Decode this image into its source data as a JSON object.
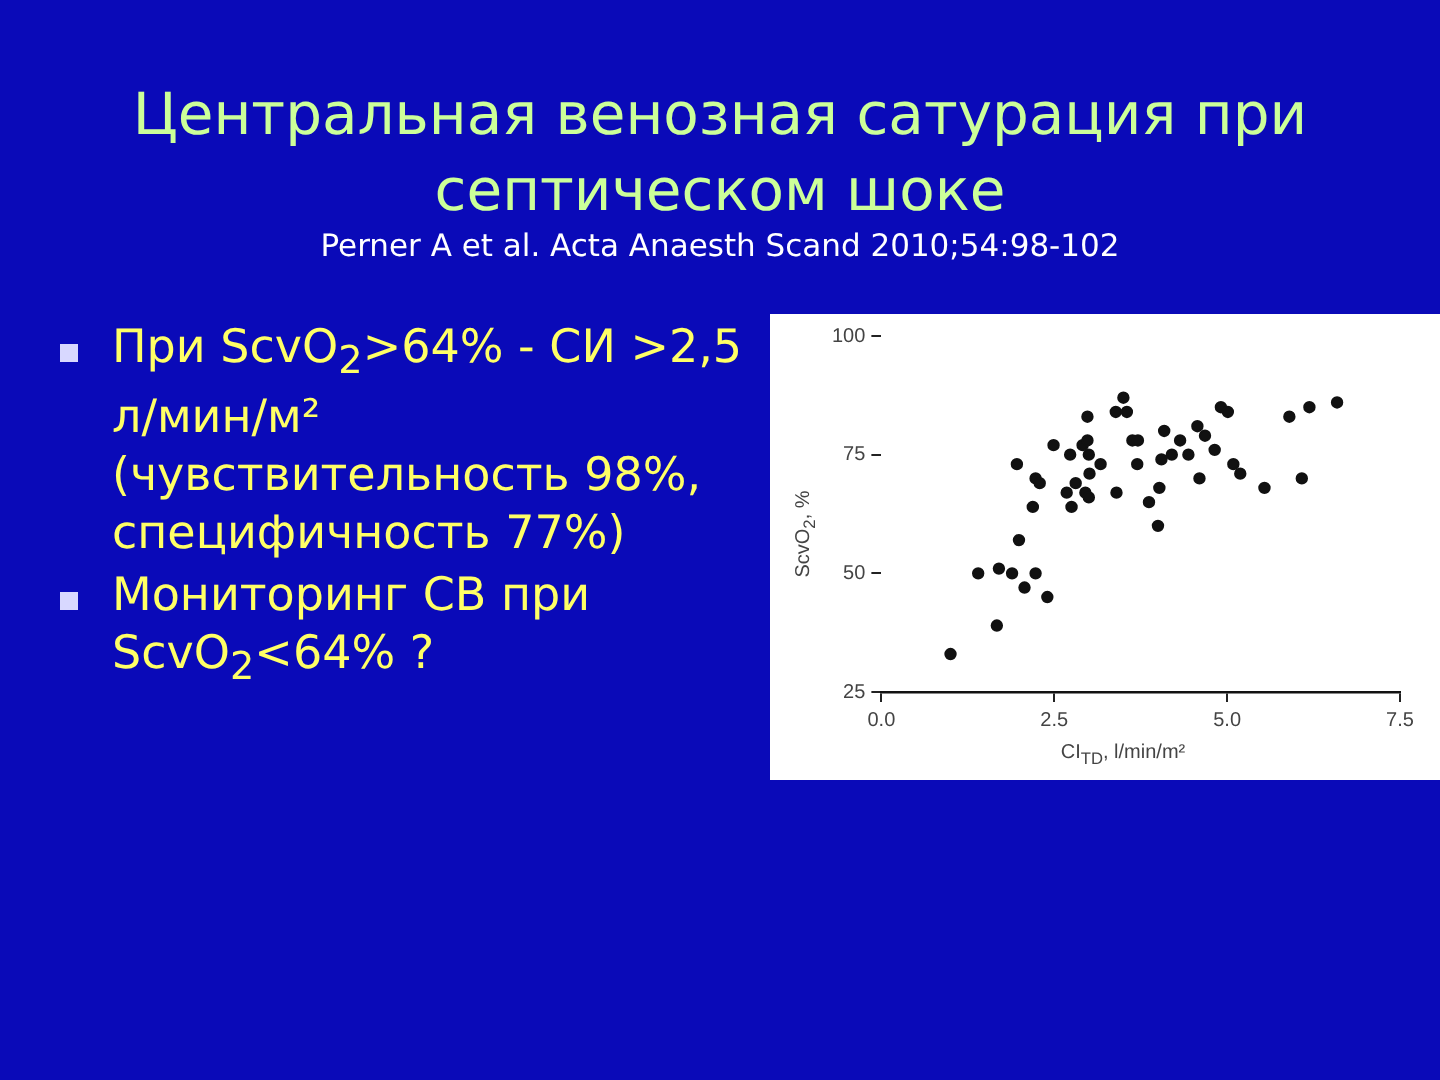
{
  "chart_data": {
    "type": "scatter",
    "title": "Центральная венозная сатурация при септическом шоке",
    "subtitle": "Perner A et al. Acta Anaesth Scand 2010;54:98-102",
    "xlabel": "CI$_{TD}$, l/min/m²",
    "ylabel": "ScvO$_{2}$, %",
    "annotations": [
      "При ScvO$_{2}$>64% - СИ >2,5 л/мин/м² (чувствительность 98%, специфичность 77%)",
      "Мониторинг СВ при ScvO$_{2}$<64% ?"
    ],
    "xlim": [
      0,
      7.5
    ],
    "ylim": [
      25,
      100
    ],
    "xticks": [
      {
        "value": 0,
        "label": "0.0"
      },
      2.5,
      {
        "value": 5,
        "label": "5.0"
      },
      7.5
    ],
    "yticks": [
      25,
      50,
      75,
      100
    ],
    "grid": false,
    "legend": false,
    "marker": "circle",
    "series": [
      {
        "color": "#111111",
        "x": [
          1.0,
          1.4,
          1.7,
          1.67,
          1.89,
          1.96,
          1.99,
          2.07,
          2.19,
          2.23,
          2.23,
          2.29,
          2.4,
          2.49,
          2.68,
          2.73,
          2.75,
          2.81,
          2.91,
          2.95,
          2.98,
          2.98,
          3.0,
          3.01,
          3.0,
          3.17,
          3.4,
          3.39,
          3.5,
          3.55,
          3.63,
          3.71,
          3.7,
          3.87,
          4.0,
          4.02,
          4.05,
          4.09,
          4.2,
          4.32,
          4.44,
          4.57,
          4.6,
          4.68,
          4.82,
          4.91,
          5.01,
          5.09,
          5.19,
          5.54,
          5.9,
          6.08,
          6.19,
          6.59
        ],
        "values": [
          33,
          50,
          51,
          39,
          50,
          73,
          57,
          47,
          64,
          50,
          70,
          69,
          45,
          77,
          67,
          75,
          64,
          69,
          77,
          67,
          83,
          78,
          75,
          71,
          66,
          73,
          67,
          84,
          87,
          84,
          78,
          78,
          73,
          65,
          60,
          68,
          74,
          80,
          75,
          78,
          75,
          81,
          70,
          79,
          76,
          85,
          84,
          73,
          71,
          68,
          83,
          70,
          85,
          86
        ]
      }
    ]
  }
}
